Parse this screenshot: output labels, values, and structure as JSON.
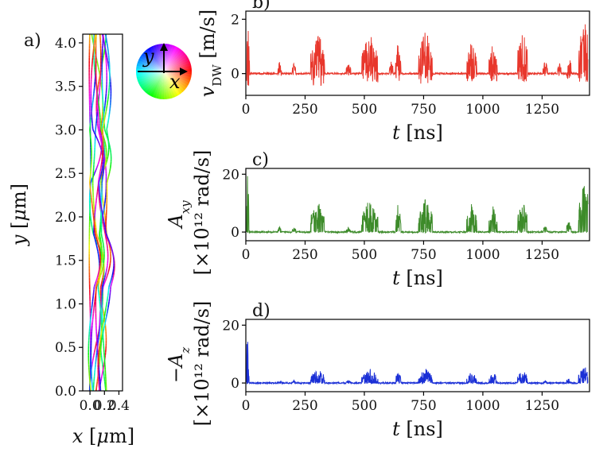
{
  "chart_data": [
    {
      "id": "a",
      "panel_label": "a)",
      "type": "line",
      "description_visible": "domain wall traces colored by angle",
      "xlabel": "x [μm]",
      "ylabel": "y [μm]",
      "xlim": [
        -0.1,
        0.45
      ],
      "ylim": [
        0.0,
        4.1
      ],
      "xticks": [
        "0.0",
        "0.2",
        "0.4"
      ],
      "xtick_values": [
        0.0,
        0.2,
        0.4
      ],
      "yticks": [
        "0.0",
        "0.5",
        "1.0",
        "1.5",
        "2.0",
        "2.5",
        "3.0",
        "3.5",
        "4.0"
      ],
      "ytick_values": [
        0.0,
        0.5,
        1.0,
        1.5,
        2.0,
        2.5,
        3.0,
        3.5,
        4.0
      ],
      "colorwheel": {
        "axis_x": "x",
        "axis_y": "y"
      }
    },
    {
      "id": "b",
      "panel_label": "b)",
      "type": "line",
      "series": [
        {
          "name": "",
          "color": "#e8372c"
        }
      ],
      "xlabel": "t [ns]",
      "ylabel": "v_DW [m/s]",
      "xlim": [
        0,
        1450
      ],
      "ylim": [
        -0.8,
        2.3
      ],
      "xticks": [
        "0",
        "250",
        "500",
        "750",
        "1000",
        "1250"
      ],
      "xtick_values": [
        0,
        250,
        500,
        750,
        1000,
        1250
      ],
      "yticks": [
        "0",
        "2"
      ],
      "ytick_values": [
        0,
        2
      ],
      "bursts": [
        {
          "t": 5,
          "w": 8,
          "amp": 2.0,
          "neg": 0.6
        },
        {
          "t": 140,
          "w": 8,
          "amp": 0.5,
          "neg": 0.1
        },
        {
          "t": 200,
          "w": 8,
          "amp": 0.4,
          "neg": 0.1
        },
        {
          "t": 300,
          "w": 30,
          "amp": 1.6,
          "neg": 0.5
        },
        {
          "t": 430,
          "w": 10,
          "amp": 0.4,
          "neg": 0.1
        },
        {
          "t": 520,
          "w": 35,
          "amp": 1.5,
          "neg": 0.4
        },
        {
          "t": 610,
          "w": 8,
          "amp": 0.5,
          "neg": 0.1
        },
        {
          "t": 640,
          "w": 12,
          "amp": 1.2,
          "neg": 0.3
        },
        {
          "t": 755,
          "w": 30,
          "amp": 1.7,
          "neg": 0.4
        },
        {
          "t": 950,
          "w": 22,
          "amp": 1.2,
          "neg": 0.3
        },
        {
          "t": 1040,
          "w": 18,
          "amp": 1.2,
          "neg": 0.3
        },
        {
          "t": 1165,
          "w": 22,
          "amp": 1.6,
          "neg": 0.3
        },
        {
          "t": 1260,
          "w": 10,
          "amp": 0.5,
          "neg": 0.1
        },
        {
          "t": 1320,
          "w": 8,
          "amp": 0.4,
          "neg": 0.1
        },
        {
          "t": 1360,
          "w": 10,
          "amp": 0.7,
          "neg": 0.2
        },
        {
          "t": 1425,
          "w": 25,
          "amp": 2.0,
          "neg": 0.3
        }
      ]
    },
    {
      "id": "c",
      "panel_label": "c)",
      "type": "line",
      "series": [
        {
          "name": "",
          "color": "#3d8b2a"
        }
      ],
      "xlabel": "t [ns]",
      "ylabel_main": "A_xy",
      "ylabel_units": "[×10¹² rad/s]",
      "xlim": [
        0,
        1450
      ],
      "ylim": [
        -3,
        22
      ],
      "xticks": [
        "0",
        "250",
        "500",
        "750",
        "1000",
        "1250"
      ],
      "xtick_values": [
        0,
        250,
        500,
        750,
        1000,
        1250
      ],
      "yticks": [
        "0",
        "20"
      ],
      "ytick_values": [
        0,
        20
      ],
      "bursts": [
        {
          "t": 4,
          "w": 8,
          "amp": 20,
          "neg": 0
        },
        {
          "t": 140,
          "w": 8,
          "amp": 2,
          "neg": 0
        },
        {
          "t": 200,
          "w": 8,
          "amp": 2,
          "neg": 0
        },
        {
          "t": 300,
          "w": 30,
          "amp": 11,
          "neg": 0
        },
        {
          "t": 430,
          "w": 10,
          "amp": 2,
          "neg": 0
        },
        {
          "t": 520,
          "w": 35,
          "amp": 12,
          "neg": 0
        },
        {
          "t": 640,
          "w": 12,
          "amp": 11,
          "neg": 0
        },
        {
          "t": 755,
          "w": 30,
          "amp": 12,
          "neg": 0
        },
        {
          "t": 950,
          "w": 22,
          "amp": 10,
          "neg": 0
        },
        {
          "t": 1040,
          "w": 18,
          "amp": 9,
          "neg": 0
        },
        {
          "t": 1165,
          "w": 22,
          "amp": 11,
          "neg": 0
        },
        {
          "t": 1260,
          "w": 10,
          "amp": 2,
          "neg": 0
        },
        {
          "t": 1360,
          "w": 10,
          "amp": 4,
          "neg": 0
        },
        {
          "t": 1425,
          "w": 25,
          "amp": 19,
          "neg": 0
        }
      ]
    },
    {
      "id": "d",
      "panel_label": "d)",
      "type": "line",
      "series": [
        {
          "name": "",
          "color": "#1a2fd6"
        }
      ],
      "xlabel": "t [ns]",
      "ylabel_main": "−A_z",
      "ylabel_units": "[×10¹² rad/s]",
      "xlim": [
        0,
        1450
      ],
      "ylim": [
        -3,
        22
      ],
      "xticks": [
        "0",
        "250",
        "500",
        "750",
        "1000",
        "1250"
      ],
      "xtick_values": [
        0,
        250,
        500,
        750,
        1000,
        1250
      ],
      "yticks": [
        "0",
        "20"
      ],
      "ytick_values": [
        0,
        20
      ],
      "bursts": [
        {
          "t": 4,
          "w": 8,
          "amp": 20,
          "neg": 0
        },
        {
          "t": 140,
          "w": 8,
          "amp": 1,
          "neg": 0
        },
        {
          "t": 200,
          "w": 8,
          "amp": 1,
          "neg": 0
        },
        {
          "t": 300,
          "w": 30,
          "amp": 5,
          "neg": 0
        },
        {
          "t": 430,
          "w": 10,
          "amp": 1,
          "neg": 0
        },
        {
          "t": 520,
          "w": 35,
          "amp": 5,
          "neg": 0
        },
        {
          "t": 640,
          "w": 12,
          "amp": 4,
          "neg": 0
        },
        {
          "t": 755,
          "w": 30,
          "amp": 5,
          "neg": 0
        },
        {
          "t": 950,
          "w": 22,
          "amp": 4,
          "neg": 0
        },
        {
          "t": 1040,
          "w": 18,
          "amp": 4,
          "neg": 0
        },
        {
          "t": 1165,
          "w": 22,
          "amp": 5,
          "neg": 0
        },
        {
          "t": 1260,
          "w": 10,
          "amp": 1,
          "neg": 0
        },
        {
          "t": 1360,
          "w": 10,
          "amp": 2,
          "neg": 0
        },
        {
          "t": 1425,
          "w": 25,
          "amp": 6,
          "neg": 0
        }
      ]
    }
  ]
}
